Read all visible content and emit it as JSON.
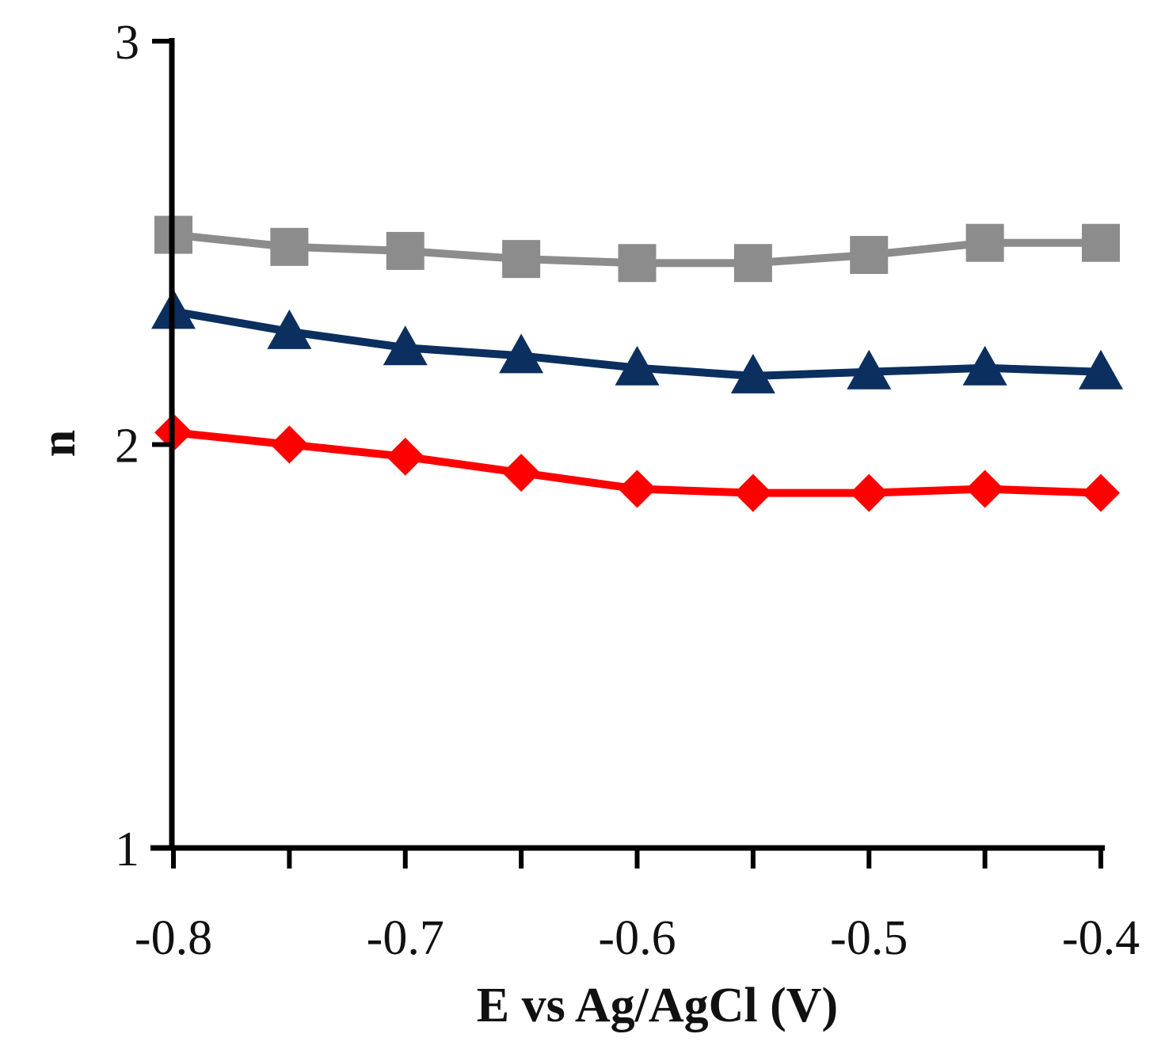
{
  "chart_data": {
    "type": "line",
    "title": "",
    "xlabel": "E vs Ag/AgCl (V)",
    "ylabel": "n",
    "xlim": [
      -0.8,
      -0.4
    ],
    "ylim": [
      1,
      3
    ],
    "x_ticks": [
      -0.8,
      -0.7,
      -0.6,
      -0.5,
      -0.4
    ],
    "x_tick_labels": [
      "-0.8",
      "-0.7",
      "-0.6",
      "-0.5",
      "-0.4"
    ],
    "y_ticks": [
      1,
      2,
      3
    ],
    "y_tick_labels": [
      "1",
      "2",
      "3"
    ],
    "grid": false,
    "legend": "none",
    "x": [
      -0.8,
      -0.75,
      -0.7,
      -0.65,
      -0.6,
      -0.55,
      -0.5,
      -0.45,
      -0.4
    ],
    "series": [
      {
        "name": "gray-squares",
        "marker": "square",
        "color": "#8c8c8c",
        "values": [
          2.52,
          2.49,
          2.48,
          2.46,
          2.45,
          2.45,
          2.47,
          2.5,
          2.5
        ]
      },
      {
        "name": "navy-triangles",
        "marker": "triangle",
        "color": "#0b2f5e",
        "values": [
          2.33,
          2.28,
          2.24,
          2.22,
          2.19,
          2.17,
          2.18,
          2.19,
          2.18
        ]
      },
      {
        "name": "red-diamonds",
        "marker": "diamond",
        "color": "#ff0000",
        "values": [
          2.03,
          2.0,
          1.97,
          1.93,
          1.89,
          1.88,
          1.88,
          1.89,
          1.88
        ]
      }
    ]
  }
}
